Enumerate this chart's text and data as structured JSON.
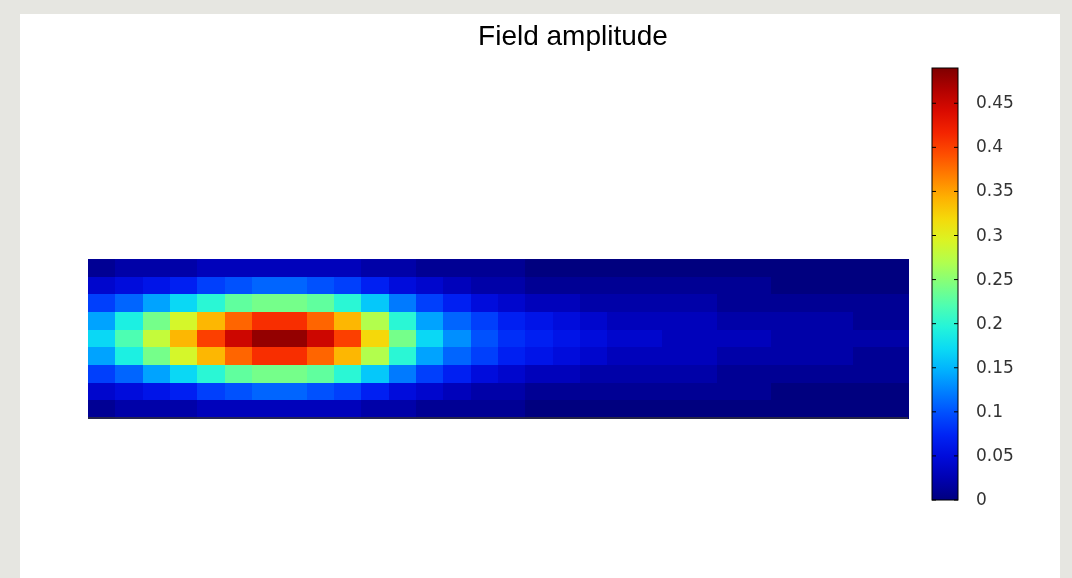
{
  "chart_data": {
    "type": "heatmap",
    "title": "Field amplitude",
    "categories": [
      null,
      null,
      null,
      null,
      null,
      null,
      null,
      null,
      null,
      null,
      null,
      null,
      null,
      null,
      null,
      null,
      null,
      null,
      null,
      null,
      null,
      null,
      null,
      null,
      null,
      null,
      null,
      null,
      null,
      null
    ],
    "y_categories": [
      null,
      null,
      null,
      null,
      null,
      null,
      null,
      null,
      null
    ],
    "cells": [
      [
        0.01,
        0.02,
        0.02,
        0.02,
        0.03,
        0.03,
        0.03,
        0.03,
        0.03,
        0.03,
        0.02,
        0.02,
        0.01,
        0.01,
        0.01,
        0.01,
        0,
        0,
        0,
        0,
        0,
        0,
        0,
        0,
        0,
        0,
        0,
        0,
        0,
        0
      ],
      [
        0.04,
        0.05,
        0.06,
        0.07,
        0.09,
        0.1,
        0.11,
        0.11,
        0.1,
        0.09,
        0.07,
        0.05,
        0.04,
        0.03,
        0.02,
        0.02,
        0.01,
        0.01,
        0.01,
        0.01,
        0.01,
        0.01,
        0.01,
        0.01,
        0.01,
        0,
        0,
        0,
        0,
        0
      ],
      [
        0.09,
        0.11,
        0.14,
        0.17,
        0.2,
        0.23,
        0.24,
        0.24,
        0.23,
        0.2,
        0.16,
        0.12,
        0.09,
        0.07,
        0.05,
        0.04,
        0.03,
        0.03,
        0.02,
        0.02,
        0.02,
        0.02,
        0.02,
        0.01,
        0.01,
        0.01,
        0.01,
        0.01,
        0.01,
        0.01
      ],
      [
        0.14,
        0.19,
        0.24,
        0.29,
        0.34,
        0.38,
        0.41,
        0.41,
        0.38,
        0.34,
        0.27,
        0.2,
        0.14,
        0.11,
        0.09,
        0.07,
        0.06,
        0.05,
        0.04,
        0.03,
        0.03,
        0.03,
        0.03,
        0.02,
        0.02,
        0.02,
        0.02,
        0.02,
        0.01,
        0.01
      ],
      [
        0.17,
        0.22,
        0.28,
        0.34,
        0.4,
        0.45,
        0.48,
        0.48,
        0.45,
        0.4,
        0.32,
        0.24,
        0.17,
        0.13,
        0.1,
        0.08,
        0.07,
        0.06,
        0.05,
        0.04,
        0.04,
        0.03,
        0.03,
        0.03,
        0.03,
        0.02,
        0.02,
        0.02,
        0.02,
        0.02
      ],
      [
        0.14,
        0.19,
        0.24,
        0.29,
        0.34,
        0.38,
        0.41,
        0.41,
        0.38,
        0.34,
        0.27,
        0.2,
        0.14,
        0.11,
        0.09,
        0.07,
        0.06,
        0.05,
        0.04,
        0.03,
        0.03,
        0.03,
        0.03,
        0.02,
        0.02,
        0.02,
        0.02,
        0.02,
        0.01,
        0.01
      ],
      [
        0.09,
        0.11,
        0.14,
        0.17,
        0.2,
        0.23,
        0.24,
        0.24,
        0.23,
        0.2,
        0.16,
        0.12,
        0.09,
        0.07,
        0.05,
        0.04,
        0.03,
        0.03,
        0.02,
        0.02,
        0.02,
        0.02,
        0.02,
        0.01,
        0.01,
        0.01,
        0.01,
        0.01,
        0.01,
        0.01
      ],
      [
        0.04,
        0.05,
        0.06,
        0.07,
        0.09,
        0.1,
        0.11,
        0.11,
        0.1,
        0.09,
        0.07,
        0.05,
        0.04,
        0.03,
        0.02,
        0.02,
        0.01,
        0.01,
        0.01,
        0.01,
        0.01,
        0.01,
        0.01,
        0.01,
        0.01,
        0,
        0,
        0,
        0,
        0
      ],
      [
        0.01,
        0.02,
        0.02,
        0.02,
        0.03,
        0.03,
        0.03,
        0.03,
        0.03,
        0.03,
        0.02,
        0.02,
        0.01,
        0.01,
        0.01,
        0.01,
        0,
        0,
        0,
        0,
        0,
        0,
        0,
        0,
        0,
        0,
        0,
        0,
        0,
        0
      ]
    ],
    "clim": [
      0,
      0.49
    ],
    "cticks": [
      0,
      0.05,
      0.1,
      0.15,
      0.2,
      0.25,
      0.3,
      0.35,
      0.4,
      0.45
    ]
  }
}
